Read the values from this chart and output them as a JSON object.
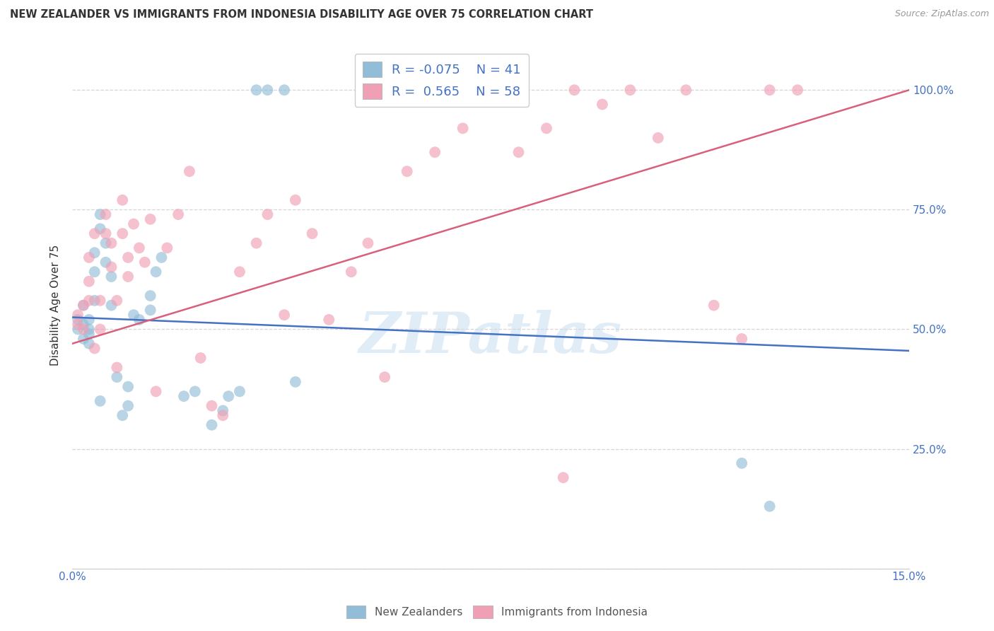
{
  "title": "NEW ZEALANDER VS IMMIGRANTS FROM INDONESIA DISABILITY AGE OVER 75 CORRELATION CHART",
  "source": "Source: ZipAtlas.com",
  "ylabel": "Disability Age Over 75",
  "xlim": [
    0.0,
    0.15
  ],
  "ylim": [
    0.0,
    1.1
  ],
  "blue_color": "#92BDD8",
  "pink_color": "#F0A0B5",
  "blue_line_color": "#4472C4",
  "pink_line_color": "#D9607A",
  "watermark": "ZIPatlas",
  "background_color": "#FFFFFF",
  "grid_color": "#CCCCCC",
  "nz_x": [
    0.001,
    0.001,
    0.002,
    0.002,
    0.002,
    0.003,
    0.003,
    0.003,
    0.003,
    0.004,
    0.004,
    0.004,
    0.005,
    0.005,
    0.005,
    0.006,
    0.006,
    0.007,
    0.007,
    0.008,
    0.009,
    0.01,
    0.01,
    0.011,
    0.012,
    0.014,
    0.014,
    0.015,
    0.016,
    0.02,
    0.022,
    0.025,
    0.027,
    0.028,
    0.03,
    0.033,
    0.035,
    0.038,
    0.04,
    0.12,
    0.125
  ],
  "nz_y": [
    0.5,
    0.52,
    0.48,
    0.51,
    0.55,
    0.5,
    0.49,
    0.47,
    0.52,
    0.56,
    0.62,
    0.66,
    0.71,
    0.74,
    0.35,
    0.64,
    0.68,
    0.61,
    0.55,
    0.4,
    0.32,
    0.38,
    0.34,
    0.53,
    0.52,
    0.54,
    0.57,
    0.62,
    0.65,
    0.36,
    0.37,
    0.3,
    0.33,
    0.36,
    0.37,
    1.0,
    1.0,
    1.0,
    0.39,
    0.22,
    0.13
  ],
  "indo_x": [
    0.001,
    0.001,
    0.002,
    0.002,
    0.003,
    0.003,
    0.003,
    0.004,
    0.004,
    0.005,
    0.005,
    0.006,
    0.006,
    0.007,
    0.007,
    0.008,
    0.008,
    0.009,
    0.009,
    0.01,
    0.01,
    0.011,
    0.012,
    0.013,
    0.014,
    0.015,
    0.017,
    0.019,
    0.021,
    0.023,
    0.025,
    0.027,
    0.03,
    0.033,
    0.035,
    0.038,
    0.04,
    0.043,
    0.046,
    0.05,
    0.053,
    0.056,
    0.06,
    0.065,
    0.07,
    0.075,
    0.08,
    0.085,
    0.088,
    0.09,
    0.095,
    0.1,
    0.105,
    0.11,
    0.115,
    0.12,
    0.125,
    0.13
  ],
  "indo_y": [
    0.51,
    0.53,
    0.5,
    0.55,
    0.56,
    0.6,
    0.65,
    0.7,
    0.46,
    0.5,
    0.56,
    0.7,
    0.74,
    0.63,
    0.68,
    0.56,
    0.42,
    0.7,
    0.77,
    0.61,
    0.65,
    0.72,
    0.67,
    0.64,
    0.73,
    0.37,
    0.67,
    0.74,
    0.83,
    0.44,
    0.34,
    0.32,
    0.62,
    0.68,
    0.74,
    0.53,
    0.77,
    0.7,
    0.52,
    0.62,
    0.68,
    0.4,
    0.83,
    0.87,
    0.92,
    1.0,
    0.87,
    0.92,
    0.19,
    1.0,
    0.97,
    1.0,
    0.9,
    1.0,
    0.55,
    0.48,
    1.0,
    1.0
  ],
  "r_nz": -0.075,
  "n_nz": 41,
  "r_indo": 0.565,
  "n_indo": 58,
  "blue_line_y0": 0.525,
  "blue_line_y1": 0.455,
  "pink_line_y0": 0.47,
  "pink_line_y1": 1.0
}
